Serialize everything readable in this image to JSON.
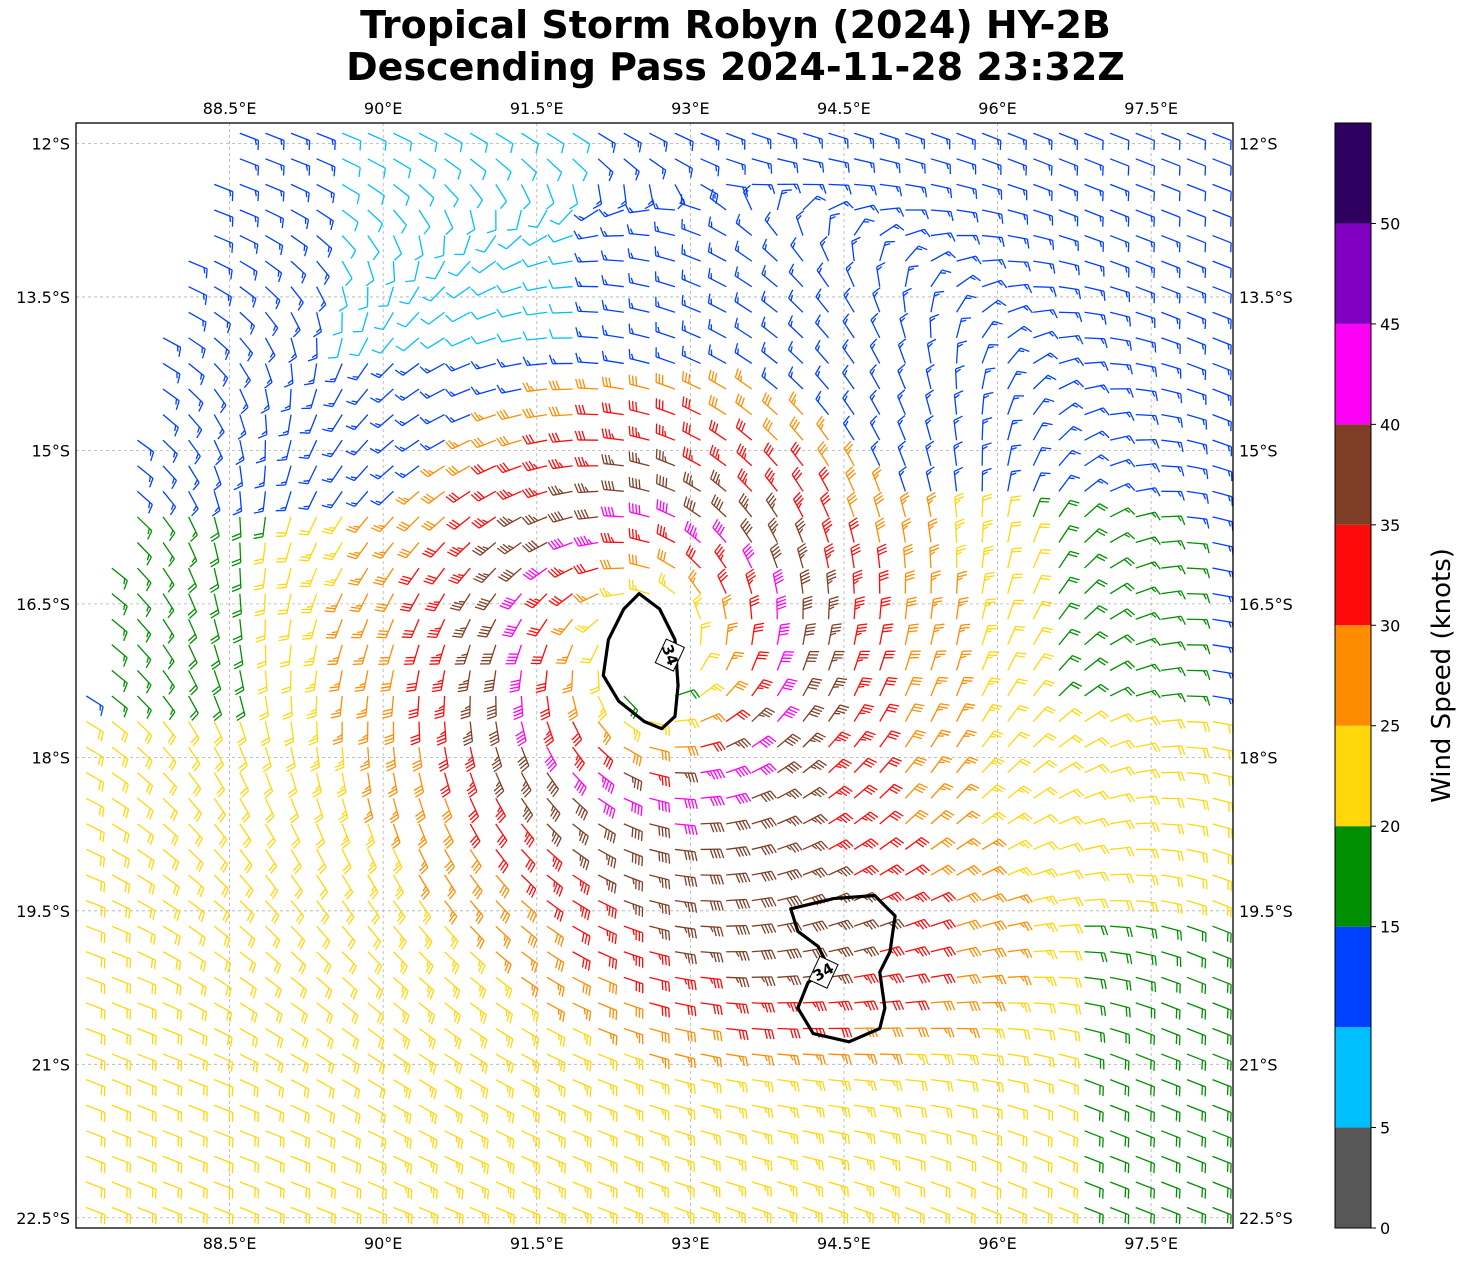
{
  "title": {
    "line1": "Tropical Storm Robyn (2024) HY-2B",
    "line2": "Descending Pass 2024-11-28 23:32Z"
  },
  "chart_data": {
    "type": "wind-barb-map",
    "lon_range": [
      87,
      98.3
    ],
    "lat_range": [
      -22.6,
      -11.8
    ],
    "lon_ticks": [
      {
        "value": 88.5,
        "label": "88.5°E"
      },
      {
        "value": 90,
        "label": "90°E"
      },
      {
        "value": 91.5,
        "label": "91.5°E"
      },
      {
        "value": 93,
        "label": "93°E"
      },
      {
        "value": 94.5,
        "label": "94.5°E"
      },
      {
        "value": 96,
        "label": "96°E"
      },
      {
        "value": 97.5,
        "label": "97.5°E"
      }
    ],
    "lat_ticks": [
      {
        "value": -12,
        "label": "12°S"
      },
      {
        "value": -13.5,
        "label": "13.5°S"
      },
      {
        "value": -15,
        "label": "15°S"
      },
      {
        "value": -16.5,
        "label": "16.5°S"
      },
      {
        "value": -18,
        "label": "18°S"
      },
      {
        "value": -19.5,
        "label": "19.5°S"
      },
      {
        "value": -21,
        "label": "21°S"
      },
      {
        "value": -22.5,
        "label": "22.5°S"
      }
    ],
    "grid": true,
    "storm_center": {
      "lon": 92.6,
      "lat": -17.0
    },
    "contours": [
      {
        "level": 34,
        "label": "34",
        "label_at": {
          "lon": 92.8,
          "lat": -17.0
        },
        "points": [
          [
            92.5,
            -16.4
          ],
          [
            92.7,
            -16.55
          ],
          [
            92.85,
            -16.85
          ],
          [
            92.88,
            -17.3
          ],
          [
            92.85,
            -17.6
          ],
          [
            92.72,
            -17.72
          ],
          [
            92.55,
            -17.65
          ],
          [
            92.3,
            -17.45
          ],
          [
            92.15,
            -17.2
          ],
          [
            92.2,
            -16.85
          ],
          [
            92.35,
            -16.55
          ]
        ]
      },
      {
        "level": 34,
        "label": "34",
        "label_at": {
          "lon": 94.3,
          "lat": -20.1
        },
        "points": [
          [
            93.98,
            -19.48
          ],
          [
            94.4,
            -19.38
          ],
          [
            94.8,
            -19.35
          ],
          [
            95.0,
            -19.55
          ],
          [
            94.95,
            -19.9
          ],
          [
            94.85,
            -20.1
          ],
          [
            94.9,
            -20.45
          ],
          [
            94.85,
            -20.65
          ],
          [
            94.55,
            -20.78
          ],
          [
            94.2,
            -20.7
          ],
          [
            94.05,
            -20.45
          ],
          [
            94.15,
            -20.2
          ],
          [
            94.35,
            -20.05
          ],
          [
            94.25,
            -19.85
          ],
          [
            94.05,
            -19.7
          ]
        ]
      }
    ],
    "colorbar": {
      "label": "Wind Speed (knots)",
      "bins": [
        {
          "from": 0,
          "to": 5,
          "color": "#575757"
        },
        {
          "from": 5,
          "to": 10,
          "color": "#00bfff"
        },
        {
          "from": 10,
          "to": 15,
          "color": "#0040ff"
        },
        {
          "from": 15,
          "to": 20,
          "color": "#008f00"
        },
        {
          "from": 20,
          "to": 25,
          "color": "#ffd70a"
        },
        {
          "from": 25,
          "to": 30,
          "color": "#ff8c00"
        },
        {
          "from": 30,
          "to": 35,
          "color": "#ff0a0a"
        },
        {
          "from": 35,
          "to": 40,
          "color": "#7f3f26"
        },
        {
          "from": 40,
          "to": 45,
          "color": "#ff00f5"
        },
        {
          "from": 45,
          "to": 50,
          "color": "#8000bf"
        },
        {
          "from": 50,
          "to": 55,
          "color": "#2e0060"
        }
      ],
      "ticks": [
        {
          "value": 0,
          "label": "0"
        },
        {
          "value": 5,
          "label": "5"
        },
        {
          "value": 15,
          "label": "15"
        },
        {
          "value": 20,
          "label": "20"
        },
        {
          "value": 25,
          "label": "25"
        },
        {
          "value": 30,
          "label": "30"
        },
        {
          "value": 35,
          "label": "35"
        },
        {
          "value": 40,
          "label": "40"
        },
        {
          "value": 45,
          "label": "45"
        },
        {
          "value": 50,
          "label": "50"
        }
      ]
    },
    "wind_field": {
      "barb_spacing_deg": 0.25,
      "swath_left_edge": [
        [
          88.4,
          -12.0
        ],
        [
          87.9,
          -13.5
        ],
        [
          87.55,
          -15.0
        ],
        [
          87.25,
          -16.5
        ],
        [
          87.0,
          -18.0
        ]
      ],
      "swath_right_edge_lon": 98.3,
      "calm_radius_deg": 0.45,
      "regions": [
        {
          "name": "core",
          "center": {
            "lon": 92.6,
            "lat": -17.0
          },
          "peak_knots": 38
        },
        {
          "name": "southern-jet",
          "center": {
            "lon": 94.4,
            "lat": -20.0
          },
          "peak_knots": 38
        }
      ],
      "background_knots": 13
    }
  }
}
